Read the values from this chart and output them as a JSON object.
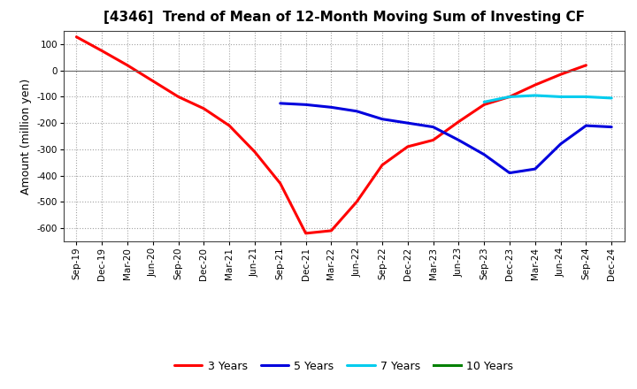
{
  "title": "[4346]  Trend of Mean of 12-Month Moving Sum of Investing CF",
  "ylabel": "Amount (million yen)",
  "background_color": "#ffffff",
  "grid_color": "#999999",
  "ylim": [
    -650,
    150
  ],
  "yticks": [
    -600,
    -500,
    -400,
    -300,
    -200,
    -100,
    0,
    100
  ],
  "xtick_labels": [
    "Sep-19",
    "Dec-19",
    "Mar-20",
    "Jun-20",
    "Sep-20",
    "Dec-20",
    "Mar-21",
    "Jun-21",
    "Sep-21",
    "Dec-21",
    "Mar-22",
    "Jun-22",
    "Sep-22",
    "Dec-22",
    "Mar-23",
    "Jun-23",
    "Sep-23",
    "Dec-23",
    "Mar-24",
    "Jun-24",
    "Sep-24",
    "Dec-24"
  ],
  "series": [
    {
      "name": "3 Years",
      "color": "#ff0000",
      "linewidth": 2.2,
      "points": [
        [
          0,
          128
        ],
        [
          1,
          75
        ],
        [
          2,
          20
        ],
        [
          3,
          -40
        ],
        [
          4,
          -100
        ],
        [
          5,
          -145
        ],
        [
          6,
          -210
        ],
        [
          7,
          -310
        ],
        [
          8,
          -430
        ],
        [
          9,
          -620
        ],
        [
          10,
          -610
        ],
        [
          11,
          -500
        ],
        [
          12,
          -360
        ],
        [
          13,
          -290
        ],
        [
          14,
          -265
        ],
        [
          15,
          -195
        ],
        [
          16,
          -130
        ],
        [
          17,
          -100
        ],
        [
          18,
          -55
        ],
        [
          19,
          -15
        ],
        [
          20,
          20
        ]
      ]
    },
    {
      "name": "5 Years",
      "color": "#0000dd",
      "linewidth": 2.2,
      "points": [
        [
          8,
          -125
        ],
        [
          9,
          -130
        ],
        [
          10,
          -140
        ],
        [
          11,
          -155
        ],
        [
          12,
          -185
        ],
        [
          13,
          -200
        ],
        [
          14,
          -215
        ],
        [
          15,
          -265
        ],
        [
          16,
          -320
        ],
        [
          17,
          -390
        ],
        [
          18,
          -375
        ],
        [
          19,
          -280
        ],
        [
          20,
          -210
        ],
        [
          21,
          -215
        ]
      ]
    },
    {
      "name": "7 Years",
      "color": "#00ccee",
      "linewidth": 2.2,
      "points": [
        [
          16,
          -120
        ],
        [
          17,
          -100
        ],
        [
          18,
          -95
        ],
        [
          19,
          -100
        ],
        [
          20,
          -100
        ],
        [
          21,
          -105
        ]
      ]
    },
    {
      "name": "10 Years",
      "color": "#008000",
      "linewidth": 2.2,
      "points": []
    }
  ]
}
